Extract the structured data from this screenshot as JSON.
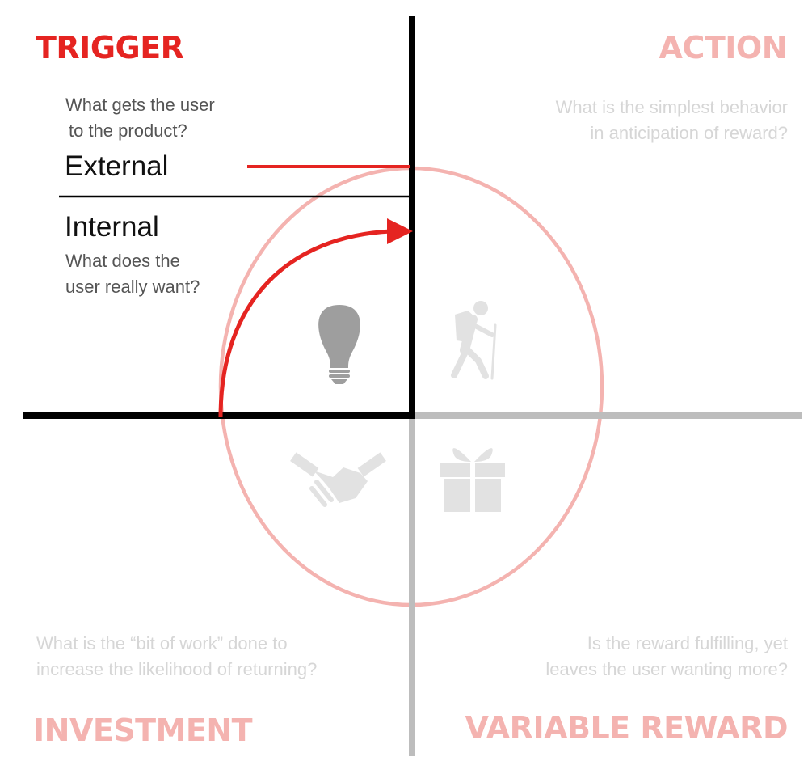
{
  "colors": {
    "accent": "#e52421",
    "faded_accent": "#f4b3b0",
    "axis_active": "#000000",
    "axis_faded": "#bdbdbd",
    "question_active": "#555555",
    "question_faded": "#d6d6d6",
    "icon_active": "#9e9e9e",
    "icon_faded": "#e2e2e2"
  },
  "trigger": {
    "title": "TRIGGER",
    "question_line1": "What gets the user",
    "question_line2": "to the product?",
    "external_label": "External",
    "internal_label": "Internal",
    "internal_question_line1": "What does the",
    "internal_question_line2": "user really want?",
    "icon": "lightbulb-icon"
  },
  "action": {
    "title": "ACTION",
    "question_line1": "What is the simplest behavior",
    "question_line2": "in anticipation of reward?",
    "icon": "hiker-icon"
  },
  "investment": {
    "title": "INVESTMENT",
    "question_line1": "What is the “bit of work” done to",
    "question_line2": "increase the likelihood of returning?",
    "icon": "handshake-icon"
  },
  "variable_reward": {
    "title": "VARIABLE REWARD",
    "question_line1": "Is the reward fulfilling, yet",
    "question_line2": "leaves the user wanting more?",
    "icon": "gift-icon"
  }
}
